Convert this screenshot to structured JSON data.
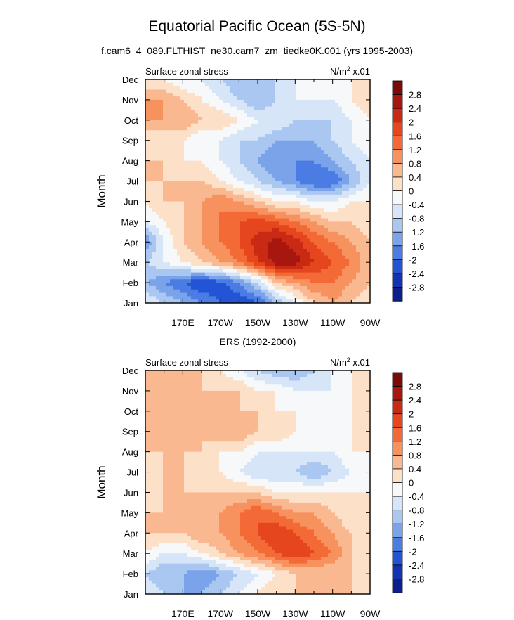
{
  "title": "Equatorial Pacific Ocean (5S-5N)",
  "subtitle": "f.cam6_4_089.FLTHIST_ne30.cam7_zm_tiedke0K.001 (yrs 1995-2003)",
  "chart_data": [
    {
      "type": "heatmap",
      "panel_title": "",
      "left_label": "Surface zonal stress",
      "units_label": "N/m",
      "units_sup": "2",
      "units_suffix": " x.01",
      "ylabel": "Month",
      "yticks": [
        "Jan",
        "Feb",
        "Mar",
        "Apr",
        "May",
        "Jun",
        "Jul",
        "Aug",
        "Sep",
        "Oct",
        "Nov",
        "Dec"
      ],
      "xticks": [
        "170E",
        "170W",
        "150W",
        "130W",
        "110W",
        "90W"
      ],
      "xtick_lon": [
        170,
        190,
        210,
        230,
        250,
        270
      ],
      "xlim_lon": [
        150,
        270
      ],
      "ylim_month": [
        1,
        12
      ],
      "x_lon": [
        150,
        160,
        170,
        180,
        190,
        200,
        210,
        220,
        230,
        240,
        250,
        260,
        270
      ],
      "values": [
        [
          -0.4,
          -0.8,
          -1.2,
          -1.6,
          -2.0,
          -2.4,
          -2.0,
          -1.2,
          -0.4,
          0.4,
          0.8,
          0.4,
          0.0
        ],
        [
          -1.2,
          -1.6,
          -2.0,
          -2.4,
          -2.2,
          -1.6,
          -0.8,
          0.4,
          0.8,
          1.2,
          1.2,
          0.8,
          0.4
        ],
        [
          -0.8,
          -0.4,
          0.0,
          0.4,
          0.8,
          1.2,
          2.0,
          2.6,
          2.6,
          2.0,
          1.6,
          1.2,
          0.4
        ],
        [
          -1.6,
          -0.4,
          0.4,
          0.8,
          1.2,
          1.6,
          2.2,
          2.6,
          2.2,
          1.6,
          1.2,
          0.8,
          0.4
        ],
        [
          -0.4,
          0.0,
          0.4,
          0.8,
          1.2,
          1.6,
          1.8,
          1.6,
          1.2,
          0.8,
          0.4,
          0.4,
          0.0
        ],
        [
          0.0,
          0.4,
          0.4,
          0.8,
          1.2,
          0.8,
          0.4,
          0.0,
          0.0,
          -0.4,
          -0.4,
          0.0,
          0.0
        ],
        [
          0.4,
          0.4,
          0.4,
          0.4,
          0.0,
          -0.4,
          -0.8,
          -1.2,
          -1.6,
          -2.0,
          -2.0,
          -1.2,
          -0.4
        ],
        [
          0.4,
          0.4,
          0.0,
          0.0,
          -0.4,
          -0.8,
          -1.2,
          -1.6,
          -1.6,
          -1.6,
          -1.2,
          -0.8,
          -0.4
        ],
        [
          0.0,
          0.0,
          0.0,
          -0.4,
          -0.4,
          -0.8,
          -0.8,
          -1.2,
          -1.2,
          -1.2,
          -0.8,
          -0.4,
          0.0
        ],
        [
          0.8,
          0.8,
          0.8,
          0.4,
          0.4,
          0.0,
          -0.4,
          -0.4,
          -0.8,
          -0.8,
          -0.8,
          -0.4,
          0.0
        ],
        [
          0.8,
          0.8,
          0.4,
          0.0,
          -0.4,
          -0.8,
          -1.2,
          -0.8,
          -0.4,
          -0.4,
          -0.4,
          0.0,
          0.4
        ],
        [
          0.0,
          0.0,
          -0.4,
          -0.4,
          -0.8,
          -1.2,
          -1.2,
          -0.8,
          -0.4,
          -0.4,
          0.0,
          0.0,
          0.0
        ]
      ]
    },
    {
      "type": "heatmap",
      "panel_title": "ERS (1992-2000)",
      "left_label": "Surface zonal stress",
      "units_label": "N/m",
      "units_sup": "2",
      "units_suffix": " x.01",
      "ylabel": "Month",
      "yticks": [
        "Jan",
        "Feb",
        "Mar",
        "Apr",
        "May",
        "Jun",
        "Jul",
        "Aug",
        "Sep",
        "Oct",
        "Nov",
        "Dec"
      ],
      "xticks": [
        "170E",
        "170W",
        "150W",
        "130W",
        "110W",
        "90W"
      ],
      "xtick_lon": [
        170,
        190,
        210,
        230,
        250,
        270
      ],
      "xlim_lon": [
        150,
        270
      ],
      "ylim_month": [
        1,
        12
      ],
      "x_lon": [
        150,
        160,
        170,
        180,
        190,
        200,
        210,
        220,
        230,
        240,
        250,
        260,
        270
      ],
      "values": [
        [
          -0.4,
          -0.8,
          -1.2,
          -1.2,
          -0.8,
          -0.4,
          0.0,
          0.4,
          0.4,
          0.8,
          0.4,
          0.4,
          0.0
        ],
        [
          -0.8,
          -1.2,
          -1.2,
          -1.6,
          -1.2,
          -0.8,
          -0.4,
          0.0,
          0.4,
          0.4,
          0.4,
          0.4,
          0.0
        ],
        [
          0.0,
          -0.4,
          -0.4,
          0.0,
          0.4,
          0.8,
          1.2,
          1.6,
          2.0,
          1.6,
          1.2,
          0.4,
          0.0
        ],
        [
          0.4,
          0.4,
          0.4,
          0.8,
          0.8,
          1.2,
          1.6,
          2.0,
          1.6,
          1.2,
          0.8,
          0.4,
          0.0
        ],
        [
          0.4,
          0.4,
          0.4,
          0.4,
          0.8,
          1.2,
          1.6,
          1.2,
          0.8,
          0.8,
          0.4,
          0.0,
          0.0
        ],
        [
          0.0,
          0.4,
          0.4,
          0.4,
          0.4,
          0.4,
          0.4,
          0.0,
          0.0,
          0.0,
          0.0,
          0.0,
          0.0
        ],
        [
          0.0,
          0.4,
          0.4,
          0.0,
          0.0,
          -0.4,
          -0.8,
          -0.8,
          -0.8,
          -1.2,
          -0.8,
          -0.4,
          0.0
        ],
        [
          0.4,
          0.4,
          0.4,
          0.4,
          0.0,
          0.0,
          -0.4,
          -0.4,
          -0.4,
          -0.4,
          -0.4,
          0.0,
          0.0
        ],
        [
          0.4,
          0.4,
          0.4,
          0.4,
          0.8,
          0.8,
          0.4,
          0.4,
          0.0,
          -0.4,
          -0.4,
          0.0,
          0.0
        ],
        [
          0.4,
          0.4,
          0.4,
          0.4,
          0.4,
          0.4,
          0.4,
          0.0,
          0.0,
          -0.4,
          -0.4,
          0.0,
          0.0
        ],
        [
          0.4,
          0.4,
          0.8,
          0.4,
          0.4,
          0.4,
          0.0,
          0.0,
          -0.4,
          -0.4,
          -0.4,
          0.0,
          0.0
        ],
        [
          0.4,
          0.4,
          0.4,
          0.4,
          0.0,
          -0.4,
          -0.8,
          -1.2,
          -1.2,
          -0.8,
          -0.4,
          0.0,
          0.0
        ]
      ]
    }
  ],
  "colorbar": {
    "labels": [
      "2.8",
      "2.4",
      "2",
      "1.6",
      "1.2",
      "0.8",
      "0.4",
      "0",
      "-0.4",
      "-0.8",
      "-1.2",
      "-1.6",
      "-2",
      "-2.4",
      "-2.8"
    ],
    "levels": [
      2.8,
      2.4,
      2.0,
      1.6,
      1.2,
      0.8,
      0.4,
      0.0,
      -0.4,
      -0.8,
      -1.2,
      -1.6,
      -2.0,
      -2.4,
      -2.8
    ],
    "colors": [
      "#7b0a08",
      "#a8170f",
      "#c92a14",
      "#e5461d",
      "#f46a37",
      "#f7925e",
      "#f9b890",
      "#fde0c8",
      "#f7f8fa",
      "#d6e6f8",
      "#a9c7f1",
      "#7aa3ea",
      "#4b7ce3",
      "#2454d6",
      "#1234b4",
      "#0b1f8d"
    ]
  }
}
